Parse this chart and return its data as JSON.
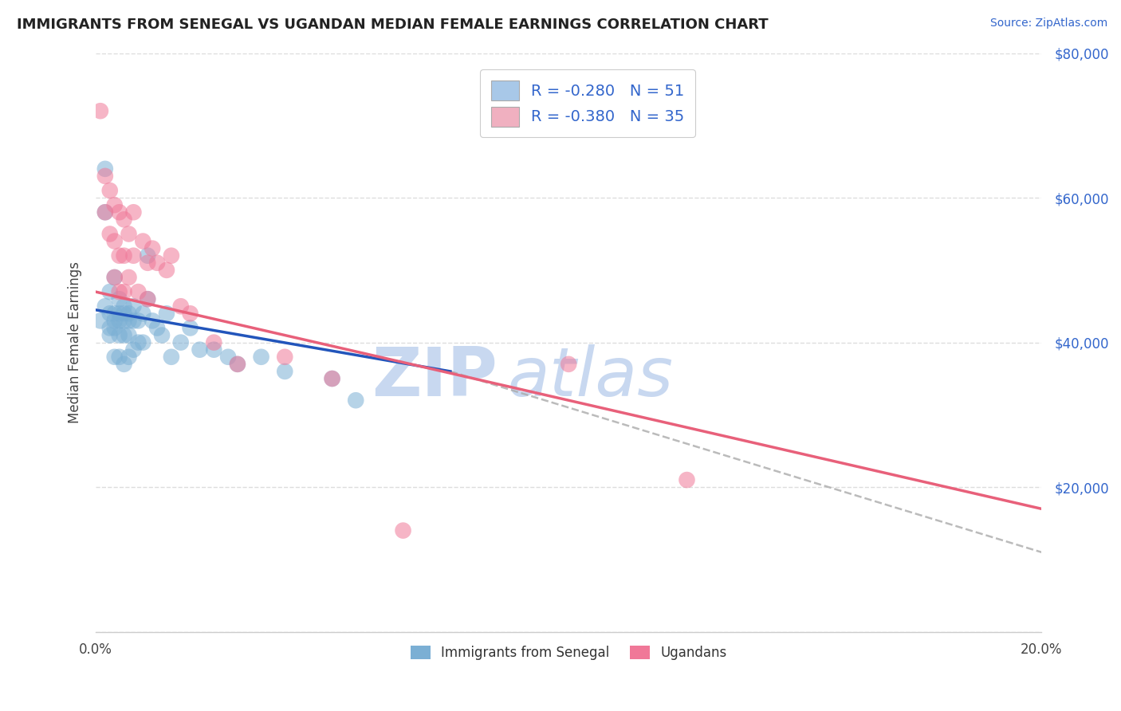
{
  "title": "IMMIGRANTS FROM SENEGAL VS UGANDAN MEDIAN FEMALE EARNINGS CORRELATION CHART",
  "source": "Source: ZipAtlas.com",
  "ylabel": "Median Female Earnings",
  "xmin": 0.0,
  "xmax": 0.2,
  "ymin": 0,
  "ymax": 80000,
  "yticks": [
    0,
    20000,
    40000,
    60000,
    80000
  ],
  "ytick_labels": [
    "",
    "$20,000",
    "$40,000",
    "$60,000",
    "$80,000"
  ],
  "legend_entries": [
    {
      "label": "R = -0.280   N = 51"
    },
    {
      "label": "R = -0.380   N = 35"
    }
  ],
  "legend_bottom": [
    "Immigrants from Senegal",
    "Ugandans"
  ],
  "senegal_color": "#7bafd4",
  "ugandan_color": "#f07898",
  "senegal_line_color": "#2255bb",
  "ugandan_line_color": "#e8607a",
  "dashed_line_color": "#aaaaaa",
  "legend_patch_senegal": "#a8c8e8",
  "legend_patch_ugandan": "#f0b0c0",
  "watermark_zip_color": "#c8d8f0",
  "watermark_atlas_color": "#c8d8f0",
  "background_color": "#ffffff",
  "grid_color": "#dddddd",
  "title_color": "#222222",
  "source_color": "#3366cc",
  "legend_text_color": "#3366cc",
  "axis_label_color": "#444444",
  "senegal_x": [
    0.001,
    0.002,
    0.002,
    0.002,
    0.003,
    0.003,
    0.003,
    0.003,
    0.004,
    0.004,
    0.004,
    0.004,
    0.004,
    0.005,
    0.005,
    0.005,
    0.005,
    0.005,
    0.006,
    0.006,
    0.006,
    0.006,
    0.006,
    0.007,
    0.007,
    0.007,
    0.007,
    0.008,
    0.008,
    0.008,
    0.009,
    0.009,
    0.01,
    0.01,
    0.011,
    0.011,
    0.012,
    0.013,
    0.014,
    0.015,
    0.016,
    0.018,
    0.02,
    0.022,
    0.025,
    0.028,
    0.03,
    0.035,
    0.04,
    0.05,
    0.055
  ],
  "senegal_y": [
    43000,
    64000,
    58000,
    45000,
    47000,
    44000,
    42000,
    41000,
    49000,
    44000,
    43000,
    42000,
    38000,
    46000,
    44000,
    43000,
    41000,
    38000,
    45000,
    44000,
    43000,
    41000,
    37000,
    44000,
    43000,
    41000,
    38000,
    45000,
    43000,
    39000,
    43000,
    40000,
    44000,
    40000,
    52000,
    46000,
    43000,
    42000,
    41000,
    44000,
    38000,
    40000,
    42000,
    39000,
    39000,
    38000,
    37000,
    38000,
    36000,
    35000,
    32000
  ],
  "ugandan_x": [
    0.001,
    0.002,
    0.002,
    0.003,
    0.003,
    0.004,
    0.004,
    0.004,
    0.005,
    0.005,
    0.005,
    0.006,
    0.006,
    0.006,
    0.007,
    0.007,
    0.008,
    0.008,
    0.009,
    0.01,
    0.011,
    0.011,
    0.012,
    0.013,
    0.015,
    0.016,
    0.018,
    0.02,
    0.025,
    0.03,
    0.04,
    0.05,
    0.065,
    0.1,
    0.125
  ],
  "ugandan_y": [
    72000,
    63000,
    58000,
    61000,
    55000,
    59000,
    54000,
    49000,
    58000,
    52000,
    47000,
    57000,
    52000,
    47000,
    55000,
    49000,
    58000,
    52000,
    47000,
    54000,
    51000,
    46000,
    53000,
    51000,
    50000,
    52000,
    45000,
    44000,
    40000,
    37000,
    38000,
    35000,
    14000,
    37000,
    21000
  ],
  "senegal_line_x": [
    0.0,
    0.075
  ],
  "senegal_line_y": [
    44500,
    36000
  ],
  "ugandan_line_x": [
    0.0,
    0.2
  ],
  "ugandan_line_y": [
    47000,
    17000
  ],
  "dashed_line_x": [
    0.075,
    0.205
  ],
  "dashed_line_y": [
    36000,
    10000
  ]
}
